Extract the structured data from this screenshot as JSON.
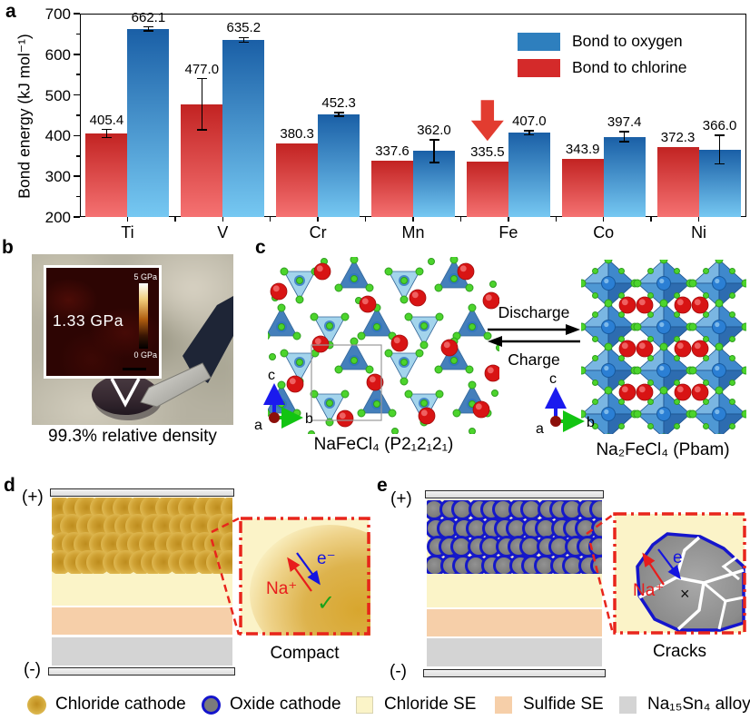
{
  "panel_a": {
    "label": "a"
  },
  "chart_data": {
    "type": "bar",
    "categories": [
      "Ti",
      "V",
      "Cr",
      "Mn",
      "Fe",
      "Co",
      "Ni"
    ],
    "series": [
      {
        "name": "Bond to chlorine",
        "color_top": "#c22322",
        "color_bottom": "#f57272",
        "values": [
          405.4,
          477.0,
          380.3,
          337.6,
          335.5,
          343.9,
          372.3
        ],
        "errors": [
          10,
          63,
          0,
          0,
          0,
          0,
          0
        ]
      },
      {
        "name": "Bond to oxygen",
        "color_top": "#1a5fa6",
        "color_bottom": "#76c8f2",
        "values": [
          662.1,
          635.2,
          452.3,
          362.0,
          407.0,
          397.4,
          366.0
        ],
        "errors": [
          5,
          6,
          4,
          28,
          5,
          12,
          35
        ]
      }
    ],
    "title": "",
    "xlabel": "",
    "ylabel": "Bond energy (kJ mol⁻¹)",
    "ylim": [
      200,
      700
    ],
    "yticks": [
      200,
      300,
      400,
      500,
      600,
      700
    ],
    "grid": false,
    "legend_position": "upper right",
    "legend": [
      {
        "label": "Bond to oxygen",
        "color": "#2e7fbe"
      },
      {
        "label": "Bond to chlorine",
        "color": "#d42a2a"
      }
    ],
    "annotation": {
      "type": "down-arrow",
      "category": "Fe",
      "series": "Bond to chlorine",
      "color": "#e23c30"
    }
  },
  "panel_b": {
    "label": "b",
    "inset_value": "1.33 GPa",
    "scale_top": "5 GPa",
    "scale_bottom": "0 GPa",
    "caption": "99.3% relative density"
  },
  "panel_c": {
    "label": "c",
    "discharge": "Discharge",
    "charge": "Charge",
    "left_formula": "NaFeCl₄ (P2₁2₁2₁)",
    "right_formula": "Na₂FeCl₄ (Pbam)",
    "axis_a": "a",
    "axis_b": "b",
    "axis_c": "c"
  },
  "panel_d": {
    "label": "d",
    "plus": "(+)",
    "minus": "(-)",
    "na": "Na⁺",
    "electron": "e⁻",
    "check": "✓",
    "caption": "Compact"
  },
  "panel_e": {
    "label": "e",
    "plus": "(+)",
    "minus": "(-)",
    "na": "Na⁺",
    "electron": "e",
    "cross": "×",
    "caption": "Cracks"
  },
  "legend": {
    "items": [
      {
        "icon": "chloride-cathode-icon",
        "label": "Chloride cathode"
      },
      {
        "icon": "oxide-cathode-icon",
        "label": "Oxide cathode"
      },
      {
        "icon": "chloride-se-icon",
        "label": "Chloride SE"
      },
      {
        "icon": "sulfide-se-icon",
        "label": "Sulfide SE"
      },
      {
        "icon": "alloy-icon",
        "label": "Na₁₅Sn₄ alloy"
      }
    ]
  },
  "colors": {
    "chloride_cathode": "#d8a832",
    "oxide_cathode_fill": "#7b7b7b",
    "oxide_cathode_ring": "#1414cc",
    "chloride_se": "#fbf4c8",
    "sulfide_se": "#f6cfa9",
    "alloy": "#d4d4d4",
    "na_red": "#e81c1c",
    "e_blue": "#1414e0",
    "check_green": "#1aa21a",
    "callout_red": "#e8251c"
  }
}
